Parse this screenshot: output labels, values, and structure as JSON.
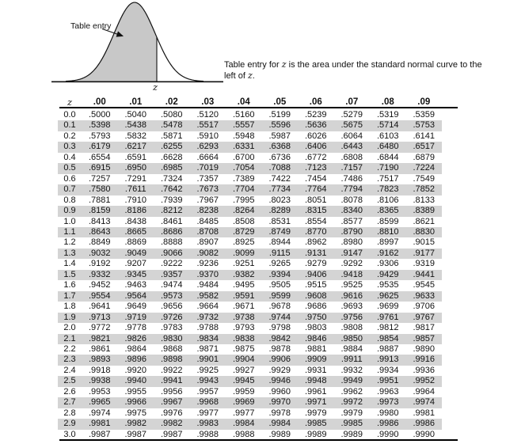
{
  "diagram": {
    "pointer_label": "Table entry",
    "axis_label": "z"
  },
  "caption": {
    "before_z1": "Table entry for ",
    "z1": "z",
    "middle": " is the area under the standard normal curve to the left of ",
    "z2": "z",
    "after": "."
  },
  "table": {
    "header": [
      "z",
      ".00",
      ".01",
      ".02",
      ".03",
      ".04",
      ".05",
      ".06",
      ".07",
      ".08",
      ".09"
    ],
    "rows": [
      [
        "0.0",
        ".5000",
        ".5040",
        ".5080",
        ".5120",
        ".5160",
        ".5199",
        ".5239",
        ".5279",
        ".5319",
        ".5359"
      ],
      [
        "0.1",
        ".5398",
        ".5438",
        ".5478",
        ".5517",
        ".5557",
        ".5596",
        ".5636",
        ".5675",
        ".5714",
        ".5753"
      ],
      [
        "0.2",
        ".5793",
        ".5832",
        ".5871",
        ".5910",
        ".5948",
        ".5987",
        ".6026",
        ".6064",
        ".6103",
        ".6141"
      ],
      [
        "0.3",
        ".6179",
        ".6217",
        ".6255",
        ".6293",
        ".6331",
        ".6368",
        ".6406",
        ".6443",
        ".6480",
        ".6517"
      ],
      [
        "0.4",
        ".6554",
        ".6591",
        ".6628",
        ".6664",
        ".6700",
        ".6736",
        ".6772",
        ".6808",
        ".6844",
        ".6879"
      ],
      [
        "0.5",
        ".6915",
        ".6950",
        ".6985",
        ".7019",
        ".7054",
        ".7088",
        ".7123",
        ".7157",
        ".7190",
        ".7224"
      ],
      [
        "0.6",
        ".7257",
        ".7291",
        ".7324",
        ".7357",
        ".7389",
        ".7422",
        ".7454",
        ".7486",
        ".7517",
        ".7549"
      ],
      [
        "0.7",
        ".7580",
        ".7611",
        ".7642",
        ".7673",
        ".7704",
        ".7734",
        ".7764",
        ".7794",
        ".7823",
        ".7852"
      ],
      [
        "0.8",
        ".7881",
        ".7910",
        ".7939",
        ".7967",
        ".7995",
        ".8023",
        ".8051",
        ".8078",
        ".8106",
        ".8133"
      ],
      [
        "0.9",
        ".8159",
        ".8186",
        ".8212",
        ".8238",
        ".8264",
        ".8289",
        ".8315",
        ".8340",
        ".8365",
        ".8389"
      ],
      [
        "1.0",
        ".8413",
        ".8438",
        ".8461",
        ".8485",
        ".8508",
        ".8531",
        ".8554",
        ".8577",
        ".8599",
        ".8621"
      ],
      [
        "1.1",
        ".8643",
        ".8665",
        ".8686",
        ".8708",
        ".8729",
        ".8749",
        ".8770",
        ".8790",
        ".8810",
        ".8830"
      ],
      [
        "1.2",
        ".8849",
        ".8869",
        ".8888",
        ".8907",
        ".8925",
        ".8944",
        ".8962",
        ".8980",
        ".8997",
        ".9015"
      ],
      [
        "1.3",
        ".9032",
        ".9049",
        ".9066",
        ".9082",
        ".9099",
        ".9115",
        ".9131",
        ".9147",
        ".9162",
        ".9177"
      ],
      [
        "1.4",
        ".9192",
        ".9207",
        ".9222",
        ".9236",
        ".9251",
        ".9265",
        ".9279",
        ".9292",
        ".9306",
        ".9319"
      ],
      [
        "1.5",
        ".9332",
        ".9345",
        ".9357",
        ".9370",
        ".9382",
        ".9394",
        ".9406",
        ".9418",
        ".9429",
        ".9441"
      ],
      [
        "1.6",
        ".9452",
        ".9463",
        ".9474",
        ".9484",
        ".9495",
        ".9505",
        ".9515",
        ".9525",
        ".9535",
        ".9545"
      ],
      [
        "1.7",
        ".9554",
        ".9564",
        ".9573",
        ".9582",
        ".9591",
        ".9599",
        ".9608",
        ".9616",
        ".9625",
        ".9633"
      ],
      [
        "1.8",
        ".9641",
        ".9649",
        ".9656",
        ".9664",
        ".9671",
        ".9678",
        ".9686",
        ".9693",
        ".9699",
        ".9706"
      ],
      [
        "1.9",
        ".9713",
        ".9719",
        ".9726",
        ".9732",
        ".9738",
        ".9744",
        ".9750",
        ".9756",
        ".9761",
        ".9767"
      ],
      [
        "2.0",
        ".9772",
        ".9778",
        ".9783",
        ".9788",
        ".9793",
        ".9798",
        ".9803",
        ".9808",
        ".9812",
        ".9817"
      ],
      [
        "2.1",
        ".9821",
        ".9826",
        ".9830",
        ".9834",
        ".9838",
        ".9842",
        ".9846",
        ".9850",
        ".9854",
        ".9857"
      ],
      [
        "2.2",
        ".9861",
        ".9864",
        ".9868",
        ".9871",
        ".9875",
        ".9878",
        ".9881",
        ".9884",
        ".9887",
        ".9890"
      ],
      [
        "2.3",
        ".9893",
        ".9896",
        ".9898",
        ".9901",
        ".9904",
        ".9906",
        ".9909",
        ".9911",
        ".9913",
        ".9916"
      ],
      [
        "2.4",
        ".9918",
        ".9920",
        ".9922",
        ".9925",
        ".9927",
        ".9929",
        ".9931",
        ".9932",
        ".9934",
        ".9936"
      ],
      [
        "2.5",
        ".9938",
        ".9940",
        ".9941",
        ".9943",
        ".9945",
        ".9946",
        ".9948",
        ".9949",
        ".9951",
        ".9952"
      ],
      [
        "2.6",
        ".9953",
        ".9955",
        ".9956",
        ".9957",
        ".9959",
        ".9960",
        ".9961",
        ".9962",
        ".9963",
        ".9964"
      ],
      [
        "2.7",
        ".9965",
        ".9966",
        ".9967",
        ".9968",
        ".9969",
        ".9970",
        ".9971",
        ".9972",
        ".9973",
        ".9974"
      ],
      [
        "2.8",
        ".9974",
        ".9975",
        ".9976",
        ".9977",
        ".9977",
        ".9978",
        ".9979",
        ".9979",
        ".9980",
        ".9981"
      ],
      [
        "2.9",
        ".9981",
        ".9982",
        ".9982",
        ".9983",
        ".9984",
        ".9984",
        ".9985",
        ".9985",
        ".9986",
        ".9986"
      ],
      [
        "3.0",
        ".9987",
        ".9987",
        ".9987",
        ".9988",
        ".9988",
        ".9989",
        ".9989",
        ".9989",
        ".9990",
        ".9990"
      ]
    ]
  },
  "colors": {
    "row_shade": "#d4d4d4",
    "curve_fill": "#c8c8c8",
    "ink": "#111111"
  }
}
